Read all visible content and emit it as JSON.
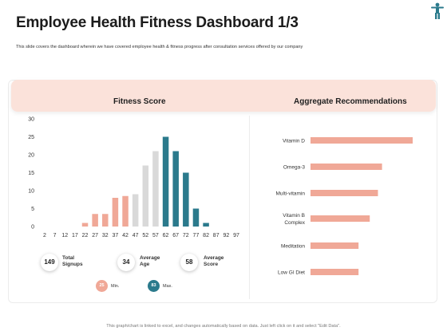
{
  "title": "Employee Health Fitness Dashboard 1/3",
  "subtitle": "This slide covers the dashboard wherein we have covered employee health & fitness progress after consultation services offered by our company",
  "panels": {
    "fitness_title": "Fitness Score",
    "recommend_title": "Aggregate Recommendations"
  },
  "stats": [
    {
      "value": "149",
      "label": "Total Signups"
    },
    {
      "value": "34",
      "label": "Average Age"
    },
    {
      "value": "58",
      "label": "Average Score"
    }
  ],
  "range": {
    "min_value": "25",
    "min_label": "Min.",
    "max_value": "83",
    "max_label": "Max."
  },
  "footer": "This graph/chart is linked to excel, and changes automatically based on data. Just left click on it and select \"Edit Data\".",
  "colors": {
    "salmon": "#f0a897",
    "light_gray": "#d9d9d9",
    "teal": "#2b7a8c",
    "header_bg": "#fbe2da"
  },
  "icons": [
    "fitness-person-icon"
  ],
  "chart_data": [
    {
      "type": "bar",
      "categories": [
        "2",
        "7",
        "12",
        "17",
        "22",
        "27",
        "32",
        "37",
        "42",
        "47",
        "52",
        "57",
        "62",
        "67",
        "72",
        "77",
        "82",
        "87",
        "92",
        "97"
      ],
      "values": [
        0,
        0,
        0,
        0,
        1,
        3.5,
        3.5,
        8,
        8.5,
        9,
        17,
        21,
        25,
        21,
        15,
        5,
        1,
        0,
        0,
        0
      ],
      "colors_by_category": [
        "salmon",
        "salmon",
        "salmon",
        "salmon",
        "salmon",
        "salmon",
        "salmon",
        "salmon",
        "salmon",
        "light_gray",
        "light_gray",
        "light_gray",
        "teal",
        "teal",
        "teal",
        "teal",
        "teal",
        "teal",
        "teal",
        "teal"
      ],
      "ylim": [
        0,
        30
      ],
      "yticks": [
        0,
        5,
        10,
        15,
        20,
        25,
        30
      ],
      "grid": false
    },
    {
      "type": "bar",
      "orientation": "horizontal",
      "categories": [
        "Vitamin D",
        "Omega-3",
        "Multi-vitamin",
        "Vitamin B Complex",
        "Meditation",
        "Low GI Diet"
      ],
      "category_lines": [
        [
          "Vitamin D"
        ],
        [
          "Omega-3"
        ],
        [
          "Multi-vitamin"
        ],
        [
          "Vitamin B",
          "Complex"
        ],
        [
          "Meditation"
        ],
        [
          "Low GI Diet"
        ]
      ],
      "values": [
        100,
        70,
        66,
        58,
        47,
        47
      ],
      "xlim": [
        0,
        100
      ],
      "color": "#f0a897"
    }
  ]
}
